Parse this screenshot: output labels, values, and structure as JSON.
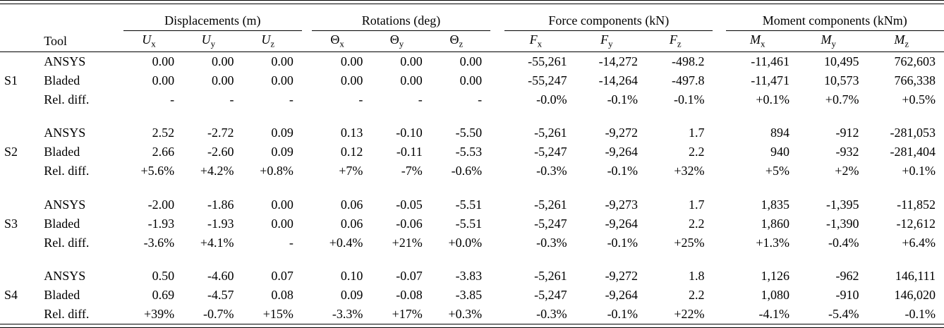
{
  "table": {
    "tool_header": "Tool",
    "column_groups": [
      {
        "label": "Displacements (m)",
        "columns": [
          {
            "main": "U",
            "sub": "x"
          },
          {
            "main": "U",
            "sub": "y"
          },
          {
            "main": "U",
            "sub": "z"
          }
        ]
      },
      {
        "label": "Rotations (deg)",
        "columns": [
          {
            "main": "Θ",
            "sub": "x"
          },
          {
            "main": "Θ",
            "sub": "y"
          },
          {
            "main": "Θ",
            "sub": "z"
          }
        ]
      },
      {
        "label": "Force components (kN)",
        "columns": [
          {
            "main": "F",
            "sub": "x"
          },
          {
            "main": "F",
            "sub": "y"
          },
          {
            "main": "F",
            "sub": "z"
          }
        ]
      },
      {
        "label": "Moment components (kNm)",
        "columns": [
          {
            "main": "M",
            "sub": "x"
          },
          {
            "main": "M",
            "sub": "y"
          },
          {
            "main": "M",
            "sub": "z"
          }
        ]
      }
    ],
    "row_groups": [
      {
        "id": "S1",
        "rows": [
          {
            "tool": "ANSYS",
            "values": [
              "0.00",
              "0.00",
              "0.00",
              "0.00",
              "0.00",
              "0.00",
              "-55,261",
              "-14,272",
              "-498.2",
              "-11,461",
              "10,495",
              "762,603"
            ]
          },
          {
            "tool": "Bladed",
            "values": [
              "0.00",
              "0.00",
              "0.00",
              "0.00",
              "0.00",
              "0.00",
              "-55,247",
              "-14,264",
              "-497.8",
              "-11,471",
              "10,573",
              "766,338"
            ]
          },
          {
            "tool": "Rel. diff.",
            "values": [
              "-",
              "-",
              "-",
              "-",
              "-",
              "-",
              "-0.0%",
              "-0.1%",
              "-0.1%",
              "+0.1%",
              "+0.7%",
              "+0.5%"
            ]
          }
        ]
      },
      {
        "id": "S2",
        "rows": [
          {
            "tool": "ANSYS",
            "values": [
              "2.52",
              "-2.72",
              "0.09",
              "0.13",
              "-0.10",
              "-5.50",
              "-5,261",
              "-9,272",
              "1.7",
              "894",
              "-912",
              "-281,053"
            ]
          },
          {
            "tool": "Bladed",
            "values": [
              "2.66",
              "-2.60",
              "0.09",
              "0.12",
              "-0.11",
              "-5.53",
              "-5,247",
              "-9,264",
              "2.2",
              "940",
              "-932",
              "-281,404"
            ]
          },
          {
            "tool": "Rel. diff.",
            "values": [
              "+5.6%",
              "+4.2%",
              "+0.8%",
              "+7%",
              "-7%",
              "-0.6%",
              "-0.3%",
              "-0.1%",
              "+32%",
              "+5%",
              "+2%",
              "+0.1%"
            ]
          }
        ]
      },
      {
        "id": "S3",
        "rows": [
          {
            "tool": "ANSYS",
            "values": [
              "-2.00",
              "-1.86",
              "0.00",
              "0.06",
              "-0.05",
              "-5.51",
              "-5,261",
              "-9,273",
              "1.7",
              "1,835",
              "-1,395",
              "-11,852"
            ]
          },
          {
            "tool": "Bladed",
            "values": [
              "-1.93",
              "-1.93",
              "0.00",
              "0.06",
              "-0.06",
              "-5.51",
              "-5,247",
              "-9,264",
              "2.2",
              "1,860",
              "-1,390",
              "-12,612"
            ]
          },
          {
            "tool": "Rel. diff.",
            "values": [
              "-3.6%",
              "+4.1%",
              "-",
              "+0.4%",
              "+21%",
              "+0.0%",
              "-0.3%",
              "-0.1%",
              "+25%",
              "+1.3%",
              "-0.4%",
              "+6.4%"
            ]
          }
        ]
      },
      {
        "id": "S4",
        "rows": [
          {
            "tool": "ANSYS",
            "values": [
              "0.50",
              "-4.60",
              "0.07",
              "0.10",
              "-0.07",
              "-3.83",
              "-5,261",
              "-9,272",
              "1.8",
              "1,126",
              "-962",
              "146,111"
            ]
          },
          {
            "tool": "Bladed",
            "values": [
              "0.69",
              "-4.57",
              "0.08",
              "0.09",
              "-0.08",
              "-3.85",
              "-5,247",
              "-9,264",
              "2.2",
              "1,080",
              "-910",
              "146,020"
            ]
          },
          {
            "tool": "Rel. diff.",
            "values": [
              "+39%",
              "-0.7%",
              "+15%",
              "-3.3%",
              "+17%",
              "+0.3%",
              "-0.3%",
              "-0.1%",
              "+22%",
              "-4.1%",
              "-5.4%",
              "-0.1%"
            ]
          }
        ]
      }
    ]
  }
}
